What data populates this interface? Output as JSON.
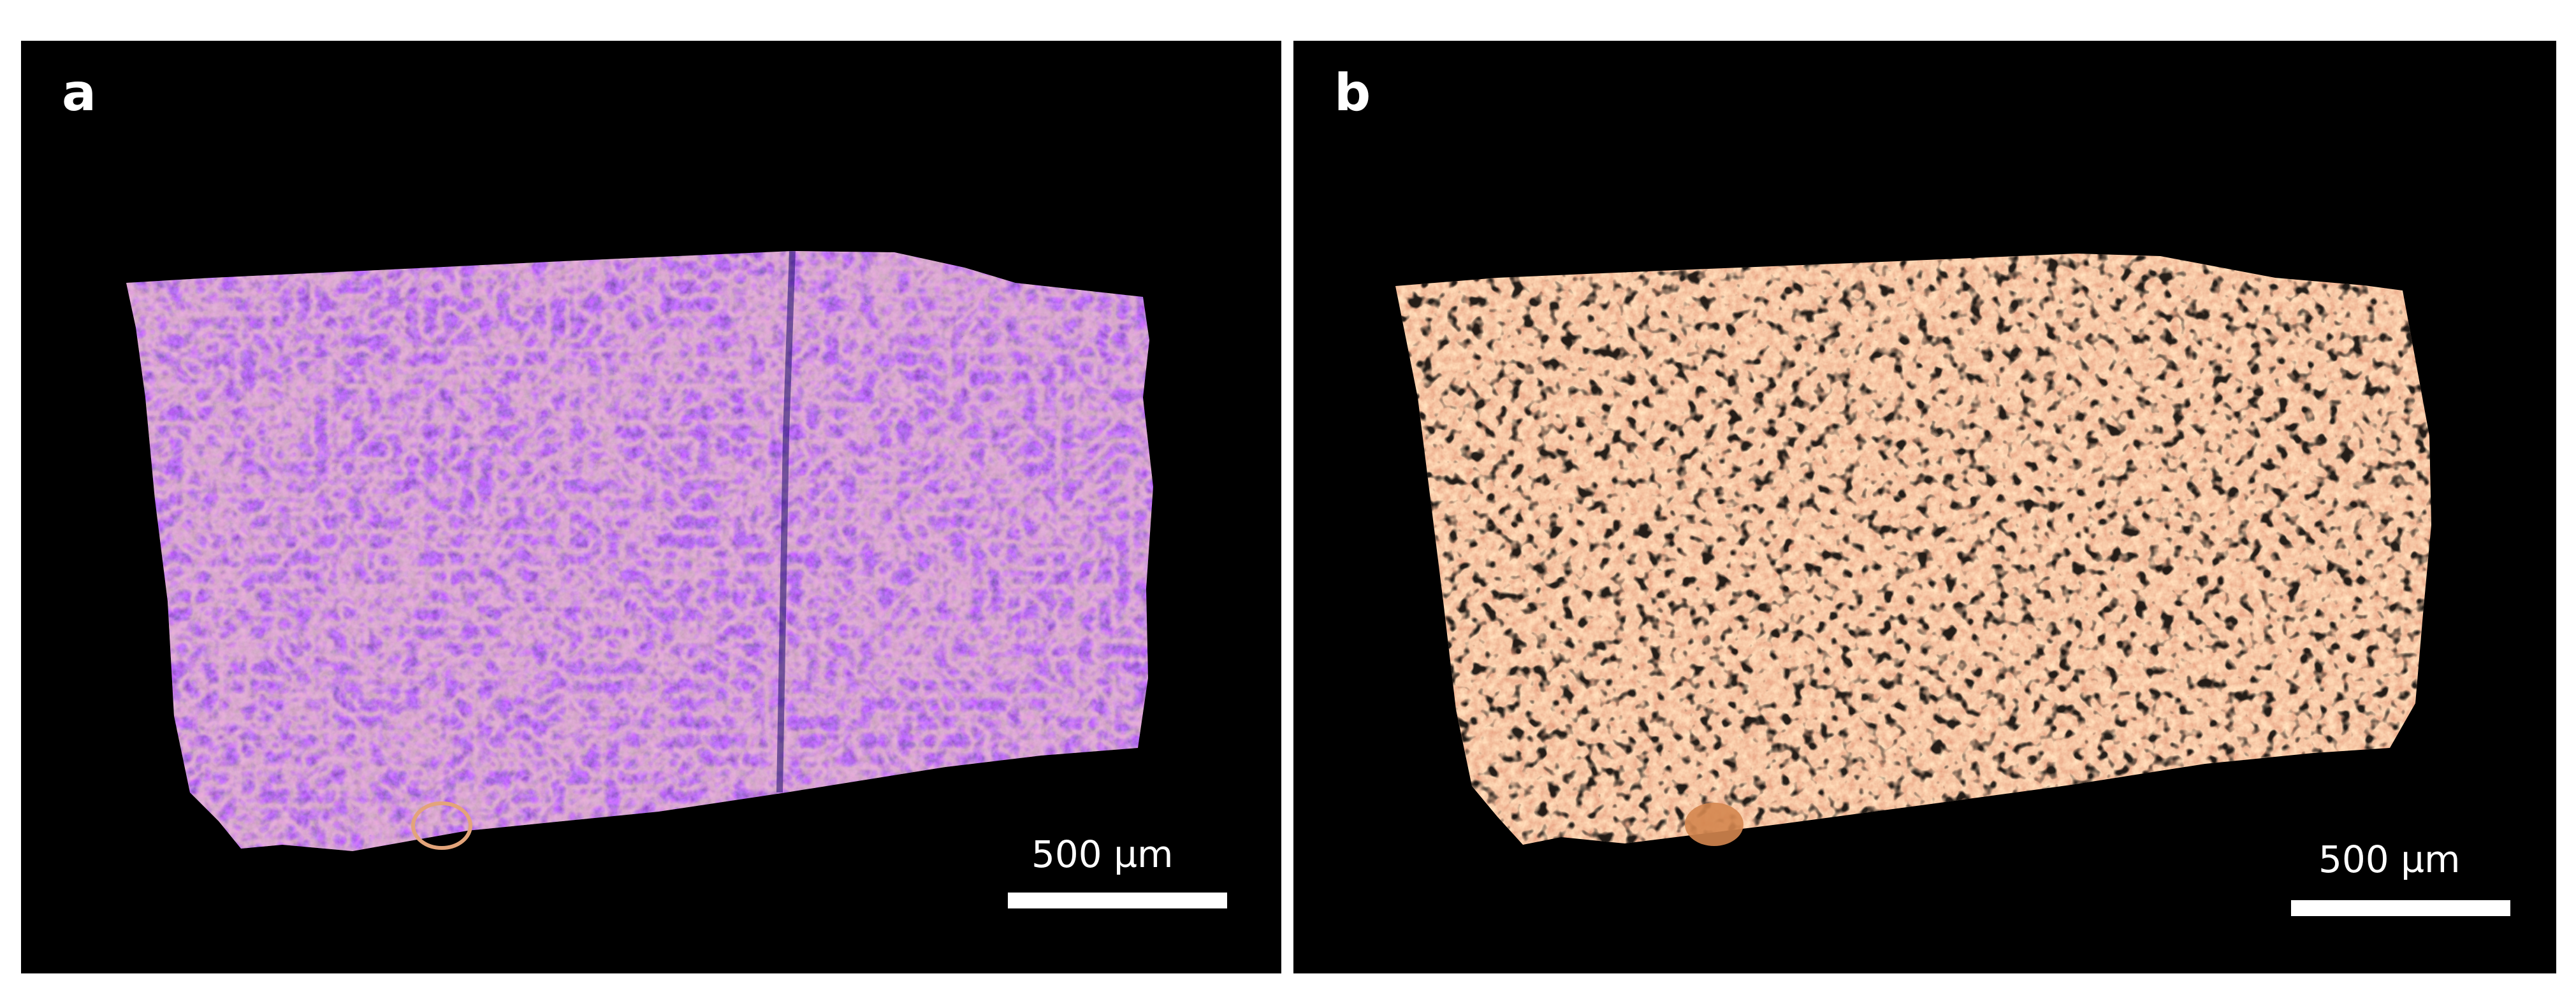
{
  "figure": {
    "panels": [
      {
        "id": "a",
        "label": "a",
        "scale_bar_label": "500 µm",
        "colormap": [
          "#1a0a6b",
          "#3a2bd8",
          "#c7407a",
          "#f5b77a"
        ]
      },
      {
        "id": "b",
        "label": "b",
        "scale_bar_label": "500 µm",
        "colormap": [
          "#b83a3a",
          "#e8754a",
          "#f4a15c",
          "#fcd27d"
        ]
      }
    ]
  }
}
